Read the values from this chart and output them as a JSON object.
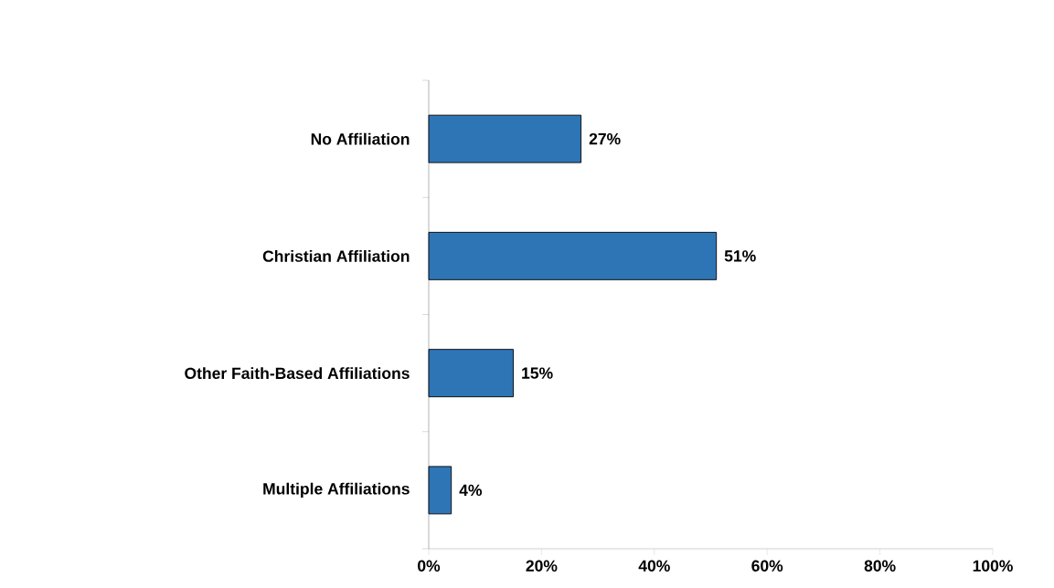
{
  "chart_data": {
    "type": "bar",
    "orientation": "horizontal",
    "categories": [
      "No Affiliation",
      "Christian Affiliation",
      "Other Faith-Based Affiliations",
      "Multiple Affiliations"
    ],
    "values": [
      27,
      51,
      15,
      4
    ],
    "value_labels": [
      "27%",
      "51%",
      "15%",
      "4%"
    ],
    "color": "#2e75b6",
    "xlim": [
      0,
      100
    ],
    "xticks": [
      {
        "value": 0,
        "label": "0%"
      },
      {
        "value": 20,
        "label": "20%"
      },
      {
        "value": 40,
        "label": "40%"
      },
      {
        "value": 60,
        "label": "60%"
      },
      {
        "value": 80,
        "label": "80%"
      },
      {
        "value": 100,
        "label": "100%"
      }
    ]
  }
}
